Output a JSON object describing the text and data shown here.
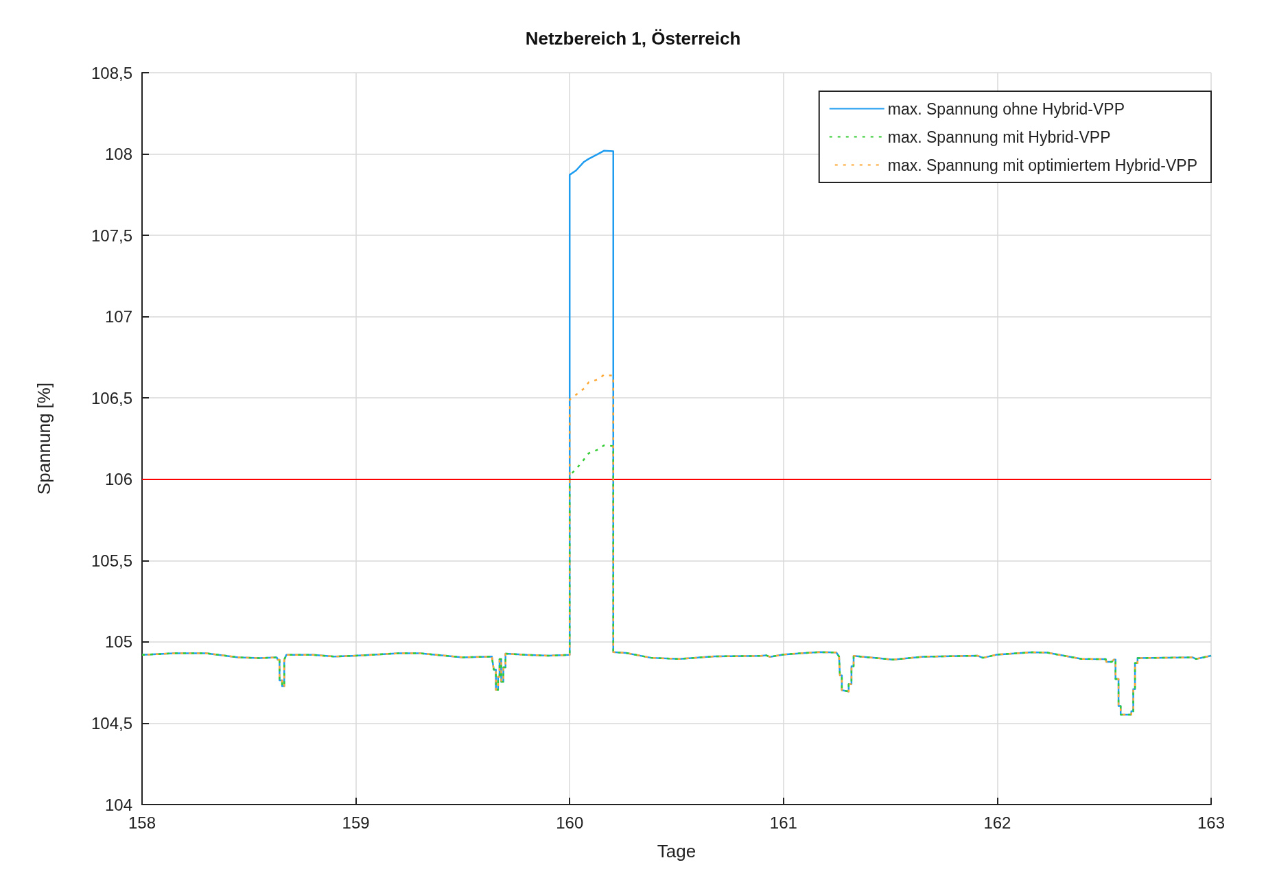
{
  "chart_data": {
    "type": "line",
    "title": "Netzbereich 1, Österreich",
    "xlabel": "Tage",
    "ylabel": "Spannung [%]",
    "x": [
      158.0,
      158.15,
      158.3,
      158.45,
      158.55,
      158.63,
      158.635,
      158.643,
      158.643,
      158.655,
      158.655,
      158.665,
      158.665,
      158.675,
      158.8,
      158.9,
      159.0,
      159.2,
      159.3,
      159.5,
      159.636,
      159.645,
      159.655,
      159.655,
      159.665,
      159.665,
      159.672,
      159.672,
      159.68,
      159.68,
      159.69,
      159.69,
      159.7,
      159.7,
      159.8,
      159.9,
      160.0,
      160.0,
      160.03,
      160.067,
      160.089,
      160.132,
      160.16,
      160.204,
      160.204,
      160.263,
      160.382,
      160.513,
      160.677,
      160.894,
      160.92,
      160.936,
      161.003,
      161.165,
      161.247,
      161.26,
      161.264,
      161.273,
      161.273,
      161.305,
      161.305,
      161.318,
      161.318,
      161.328,
      161.328,
      161.438,
      161.512,
      161.654,
      161.908,
      161.933,
      161.999,
      162.161,
      162.233,
      162.395,
      162.507,
      162.51,
      162.535,
      162.545,
      162.553,
      162.553,
      162.567,
      162.567,
      162.577,
      162.577,
      162.627,
      162.627,
      162.636,
      162.636,
      162.644,
      162.644,
      162.656,
      162.656,
      162.913,
      162.93,
      163.0
    ],
    "series": [
      {
        "name": "max. Spannung ohne Hybrid-VPP",
        "color": "#1e9cf0",
        "line_style": "solid",
        "values": [
          104.92,
          104.93,
          104.93,
          104.905,
          104.9,
          104.905,
          104.89,
          104.89,
          104.763,
          104.763,
          104.727,
          104.727,
          104.89,
          104.92,
          104.92,
          104.91,
          104.915,
          104.93,
          104.93,
          104.905,
          104.91,
          104.83,
          104.83,
          104.705,
          104.705,
          104.785,
          104.785,
          104.894,
          104.894,
          104.755,
          104.755,
          104.844,
          104.844,
          104.928,
          104.92,
          104.915,
          104.92,
          107.872,
          107.899,
          107.952,
          107.97,
          108.0,
          108.02,
          108.017,
          104.937,
          104.932,
          104.902,
          104.895,
          104.911,
          104.914,
          104.917,
          104.908,
          104.923,
          104.937,
          104.935,
          104.91,
          104.794,
          104.794,
          104.703,
          104.695,
          104.74,
          104.74,
          104.85,
          104.85,
          104.914,
          104.9,
          104.891,
          104.909,
          104.915,
          104.902,
          104.922,
          104.936,
          104.934,
          104.895,
          104.894,
          104.877,
          104.877,
          104.891,
          104.891,
          104.772,
          104.772,
          104.605,
          104.605,
          104.552,
          104.552,
          104.574,
          104.574,
          104.71,
          104.71,
          104.87,
          104.87,
          104.9,
          104.905,
          104.895,
          104.915
        ]
      },
      {
        "name": "max. Spannung mit Hybrid-VPP",
        "color": "#33cc33",
        "line_style": "dashed",
        "values": [
          104.92,
          104.93,
          104.93,
          104.905,
          104.9,
          104.905,
          104.89,
          104.89,
          104.763,
          104.763,
          104.727,
          104.727,
          104.89,
          104.92,
          104.92,
          104.91,
          104.915,
          104.93,
          104.93,
          104.905,
          104.91,
          104.83,
          104.83,
          104.705,
          104.705,
          104.785,
          104.785,
          104.894,
          104.894,
          104.755,
          104.755,
          104.844,
          104.844,
          104.928,
          104.92,
          104.915,
          104.92,
          106.024,
          106.062,
          106.122,
          106.16,
          106.182,
          106.208,
          106.205,
          104.937,
          104.932,
          104.902,
          104.895,
          104.911,
          104.914,
          104.917,
          104.908,
          104.923,
          104.937,
          104.935,
          104.91,
          104.794,
          104.794,
          104.703,
          104.695,
          104.74,
          104.74,
          104.85,
          104.85,
          104.914,
          104.9,
          104.891,
          104.909,
          104.915,
          104.902,
          104.922,
          104.936,
          104.934,
          104.895,
          104.894,
          104.877,
          104.877,
          104.891,
          104.891,
          104.772,
          104.772,
          104.605,
          104.605,
          104.552,
          104.552,
          104.574,
          104.574,
          104.71,
          104.71,
          104.87,
          104.87,
          104.9,
          104.905,
          104.895,
          104.915
        ]
      },
      {
        "name": "max. Spannung mit optimiertem Hybrid-VPP",
        "color": "#ffa733",
        "line_style": "dashed",
        "values": [
          104.92,
          104.93,
          104.93,
          104.905,
          104.9,
          104.905,
          104.89,
          104.89,
          104.763,
          104.763,
          104.727,
          104.727,
          104.89,
          104.92,
          104.92,
          104.91,
          104.915,
          104.93,
          104.93,
          104.905,
          104.91,
          104.83,
          104.83,
          104.705,
          104.705,
          104.785,
          104.785,
          104.894,
          104.894,
          104.755,
          104.755,
          104.844,
          104.844,
          104.928,
          104.92,
          104.915,
          104.92,
          106.49,
          106.52,
          106.558,
          106.596,
          106.614,
          106.642,
          106.637,
          104.937,
          104.932,
          104.902,
          104.895,
          104.911,
          104.914,
          104.917,
          104.908,
          104.923,
          104.937,
          104.935,
          104.91,
          104.794,
          104.794,
          104.703,
          104.695,
          104.74,
          104.74,
          104.85,
          104.85,
          104.914,
          104.9,
          104.891,
          104.909,
          104.915,
          104.902,
          104.922,
          104.936,
          104.934,
          104.895,
          104.894,
          104.877,
          104.877,
          104.891,
          104.891,
          104.772,
          104.772,
          104.605,
          104.605,
          104.552,
          104.552,
          104.574,
          104.574,
          104.71,
          104.71,
          104.87,
          104.87,
          104.9,
          104.905,
          104.895,
          104.915
        ]
      }
    ],
    "xlim": [
      158,
      163
    ],
    "xticks": [
      158,
      159,
      160,
      161,
      162,
      163
    ],
    "ylim": [
      104,
      108.5
    ],
    "yticks": [
      104,
      {
        "value": 104.5,
        "label": "104,5"
      },
      105,
      {
        "value": 105.5,
        "label": "105,5"
      },
      106,
      {
        "value": 106.5,
        "label": "106,5"
      },
      107,
      {
        "value": 107.5,
        "label": "107,5"
      },
      108,
      {
        "value": 108.5,
        "label": "108,5"
      }
    ],
    "ref_lines": [
      {
        "axis": "y",
        "value": 106,
        "color": "#ff0000"
      }
    ],
    "grid": true,
    "legend": "top right",
    "marker": "none"
  }
}
